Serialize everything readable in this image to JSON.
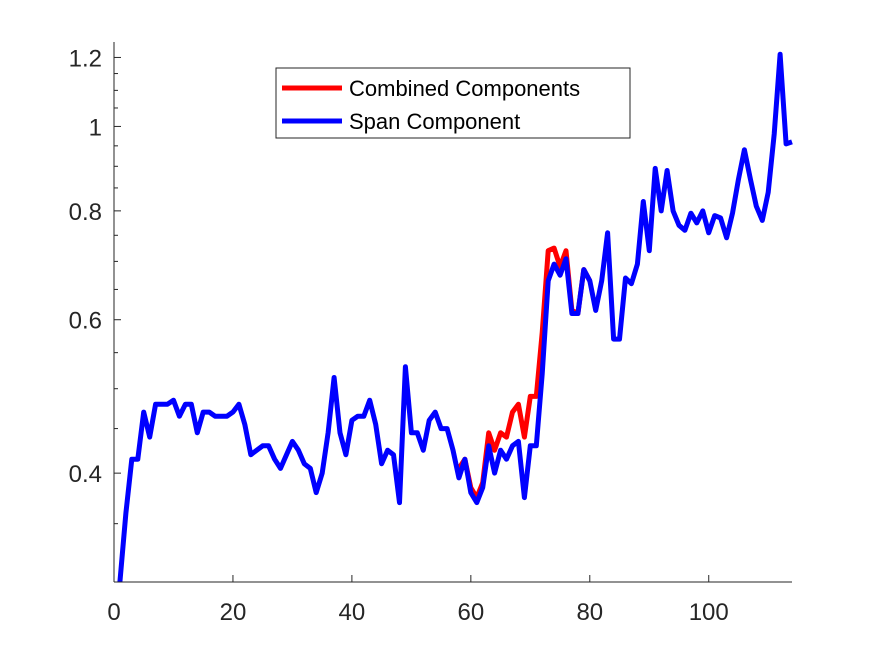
{
  "chart_data": {
    "type": "line",
    "title": "",
    "xlabel": "",
    "ylabel": "",
    "xlim": [
      0,
      114
    ],
    "ylim": [
      0.3,
      1.25
    ],
    "yscale": "log",
    "grid": false,
    "legend_position": "top-center",
    "x_ticks": [
      0,
      20,
      40,
      60,
      80,
      100
    ],
    "x_tick_labels": [
      "0",
      "20",
      "40",
      "60",
      "80",
      "100"
    ],
    "y_ticks": [
      0.4,
      0.6,
      0.8,
      1.0,
      1.2
    ],
    "y_tick_labels": [
      "0.4",
      "0.6",
      "0.8",
      "1",
      "1.2"
    ],
    "series": [
      {
        "name": "Combined Components",
        "color": "#ff0000",
        "x": [
          58,
          59,
          60,
          61,
          62,
          63,
          64,
          65,
          66,
          67,
          68,
          69,
          70,
          71,
          72,
          73,
          74,
          75,
          76,
          77,
          78,
          79,
          80
        ],
        "y": [
          0.405,
          0.415,
          0.385,
          0.375,
          0.39,
          0.445,
          0.425,
          0.445,
          0.44,
          0.47,
          0.48,
          0.44,
          0.49,
          0.49,
          0.58,
          0.72,
          0.725,
          0.69,
          0.72,
          0.615,
          0.61,
          0.685,
          0.665
        ]
      },
      {
        "name": "Span Component",
        "color": "#0000ff",
        "x": [
          1,
          2,
          3,
          4,
          5,
          6,
          7,
          8,
          9,
          10,
          11,
          12,
          13,
          14,
          15,
          16,
          17,
          18,
          19,
          20,
          21,
          22,
          23,
          24,
          25,
          26,
          27,
          28,
          29,
          30,
          31,
          32,
          33,
          34,
          35,
          36,
          37,
          38,
          39,
          40,
          41,
          42,
          43,
          44,
          45,
          46,
          47,
          48,
          49,
          50,
          51,
          52,
          53,
          54,
          55,
          56,
          57,
          58,
          59,
          60,
          61,
          62,
          63,
          64,
          65,
          66,
          67,
          68,
          69,
          70,
          71,
          72,
          73,
          74,
          75,
          76,
          77,
          78,
          79,
          80,
          81,
          82,
          83,
          84,
          85,
          86,
          87,
          88,
          89,
          90,
          91,
          92,
          93,
          94,
          95,
          96,
          97,
          98,
          99,
          100,
          101,
          102,
          103,
          104,
          105,
          106,
          107,
          108,
          109,
          110,
          111,
          112,
          113,
          114
        ],
        "y": [
          0.3,
          0.36,
          0.415,
          0.415,
          0.47,
          0.44,
          0.48,
          0.48,
          0.48,
          0.485,
          0.465,
          0.48,
          0.48,
          0.445,
          0.47,
          0.47,
          0.465,
          0.465,
          0.465,
          0.47,
          0.48,
          0.455,
          0.42,
          0.425,
          0.43,
          0.43,
          0.415,
          0.405,
          0.42,
          0.435,
          0.425,
          0.41,
          0.405,
          0.38,
          0.4,
          0.445,
          0.515,
          0.445,
          0.42,
          0.46,
          0.465,
          0.465,
          0.485,
          0.455,
          0.41,
          0.425,
          0.42,
          0.37,
          0.53,
          0.445,
          0.445,
          0.425,
          0.46,
          0.47,
          0.45,
          0.45,
          0.425,
          0.395,
          0.415,
          0.38,
          0.37,
          0.385,
          0.43,
          0.4,
          0.425,
          0.415,
          0.43,
          0.435,
          0.375,
          0.43,
          0.43,
          0.52,
          0.665,
          0.695,
          0.675,
          0.705,
          0.61,
          0.61,
          0.685,
          0.665,
          0.615,
          0.665,
          0.755,
          0.57,
          0.57,
          0.67,
          0.66,
          0.695,
          0.82,
          0.72,
          0.895,
          0.8,
          0.89,
          0.8,
          0.77,
          0.76,
          0.795,
          0.775,
          0.8,
          0.755,
          0.79,
          0.785,
          0.745,
          0.795,
          0.87,
          0.94,
          0.87,
          0.81,
          0.78,
          0.84,
          0.98,
          1.21,
          0.955,
          0.96
        ]
      }
    ]
  }
}
